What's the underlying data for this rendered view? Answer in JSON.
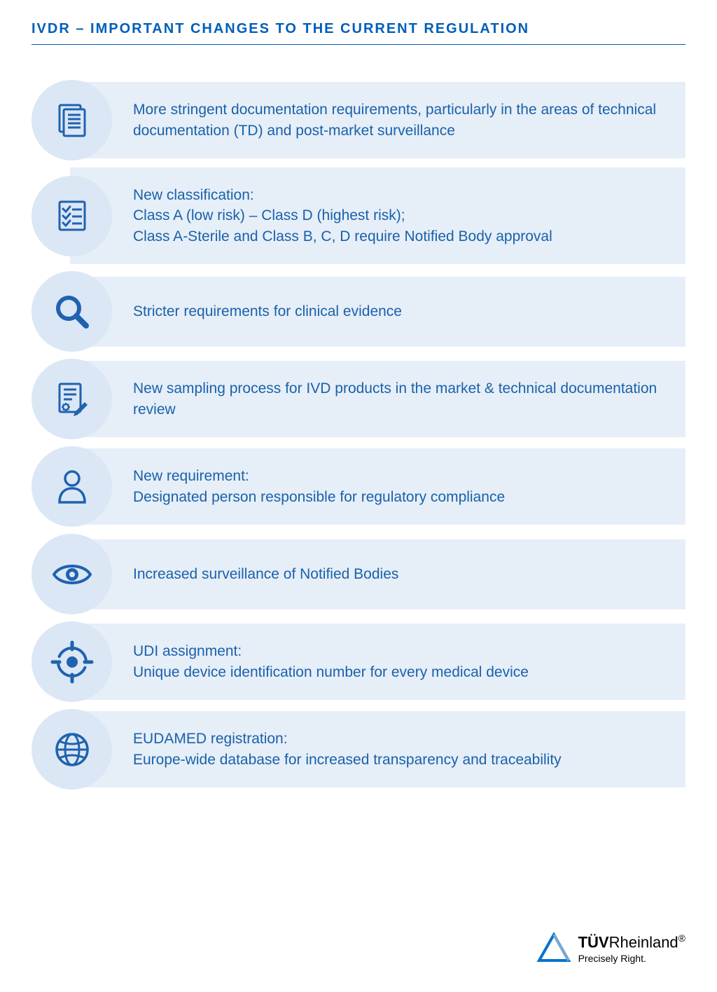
{
  "title": "IVDR – IMPORTANT CHANGES TO THE CURRENT REGULATION",
  "colors": {
    "primary": "#005eb8",
    "icon_bg": "#dbe7f5",
    "text_bg": "#e6eef8",
    "text_color": "#1962a9",
    "icon_stroke": "#1f62b0"
  },
  "items": [
    {
      "icon": "documents",
      "text": "More stringent documentation requirements, particularly in the areas of technical documentation (TD) and post-market surveillance"
    },
    {
      "icon": "checklist",
      "text": "New classification:\nClass A (low risk) – Class D (highest risk);\nClass A-Sterile and Class B, C, D require Notified Body approval"
    },
    {
      "icon": "magnifier",
      "text": "Stricter requirements for clinical evidence"
    },
    {
      "icon": "doc-edit",
      "text": "New sampling process for IVD products in the market & technical documentation review"
    },
    {
      "icon": "person",
      "text": "New requirement:\nDesignated person responsible for regulatory compliance"
    },
    {
      "icon": "eye",
      "text": "Increased surveillance of Notified Bodies"
    },
    {
      "icon": "target",
      "text": "UDI assignment:\nUnique device identification number for every medical device"
    },
    {
      "icon": "globe",
      "text": "EUDAMED registration:\nEurope-wide database for increased transparency and traceability"
    }
  ],
  "footer": {
    "brand_bold": "TÜV",
    "brand_rest": "Rheinland",
    "registered": "®",
    "tagline": "Precisely Right."
  }
}
